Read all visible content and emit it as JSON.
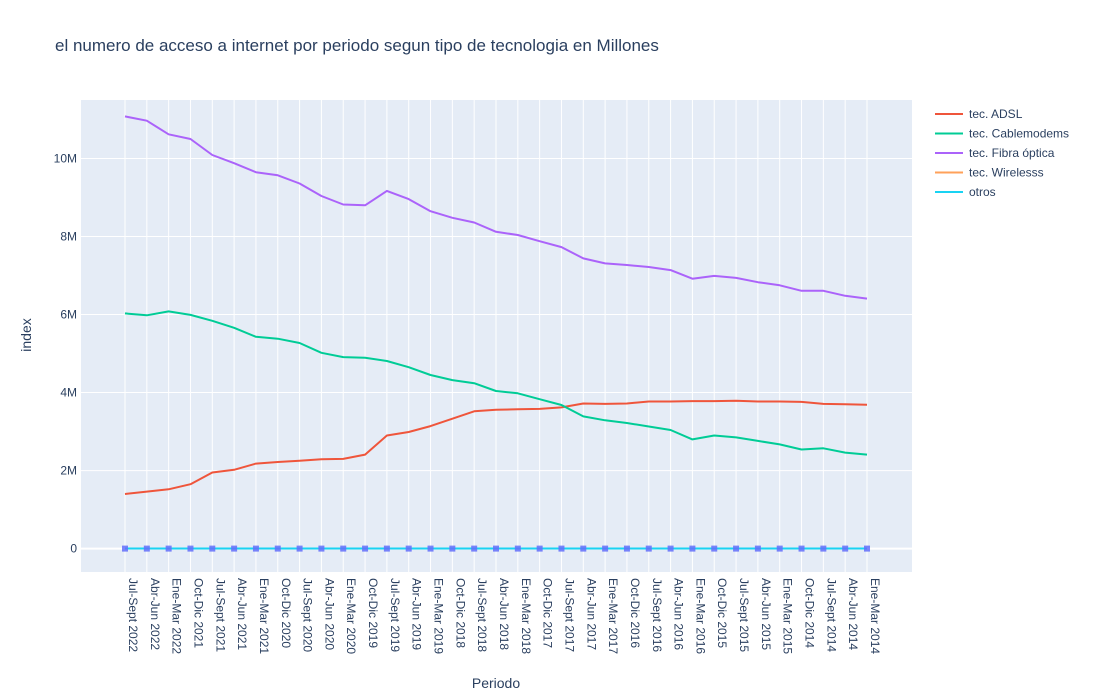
{
  "chart_data": {
    "type": "line",
    "title": "el numero de acceso a internet por periodo segun tipo de tecnologia en Millones",
    "xlabel": "Periodo",
    "ylabel": "index",
    "ylim": [
      -600000,
      11500000
    ],
    "yticks": [
      0,
      2000000,
      4000000,
      6000000,
      8000000,
      10000000
    ],
    "ytick_labels": [
      "0",
      "2M",
      "4M",
      "6M",
      "8M",
      "10M"
    ],
    "grid": true,
    "legend_position": "top-right",
    "background": "#e5ecf6",
    "categories": [
      "Jul-Sept 2022",
      "Abr-Jun 2022",
      "Ene-Mar 2022",
      "Oct-Dic 2021",
      "Jul-Sept 2021",
      "Abr-Jun 2021",
      "Ene-Mar 2021",
      "Oct-Dic 2020",
      "Jul-Sept 2020",
      "Abr-Jun 2020",
      "Ene-Mar 2020",
      "Oct-Dic 2019",
      "Jul-Sept 2019",
      "Abr-Jun 2019",
      "Ene-Mar 2019",
      "Oct-Dic 2018",
      "Jul-Sept 2018",
      "Abr-Jun 2018",
      "Ene-Mar 2018",
      "Oct-Dic 2017",
      "Jul-Sept 2017",
      "Abr-Jun 2017",
      "Ene-Mar 2017",
      "Oct-Dic 2016",
      "Jul-Sept 2016",
      "Abr-Jun 2016",
      "Ene-Mar 2016",
      "Oct-Dic 2015",
      "Jul-Sept 2015",
      "Abr-Jun 2015",
      "Ene-Mar 2015",
      "Oct-Dic 2014",
      "Jul-Sept 2014",
      "Abr-Jun 2014",
      "Ene-Mar 2014"
    ],
    "series": [
      {
        "name": "tec. ADSL",
        "color": "#ef553b",
        "values": [
          1400000,
          1460000,
          1520000,
          1650000,
          1950000,
          2020000,
          2180000,
          2220000,
          2250000,
          2290000,
          2300000,
          2410000,
          2900000,
          2990000,
          3140000,
          3330000,
          3520000,
          3560000,
          3570000,
          3580000,
          3620000,
          3720000,
          3710000,
          3720000,
          3770000,
          3770000,
          3780000,
          3780000,
          3790000,
          3770000,
          3770000,
          3760000,
          3710000,
          3700000,
          3690000
        ]
      },
      {
        "name": "tec. Cablemodems",
        "color": "#00cc96",
        "values": [
          6030000,
          5980000,
          6080000,
          5990000,
          5840000,
          5660000,
          5430000,
          5380000,
          5270000,
          5020000,
          4910000,
          4890000,
          4810000,
          4650000,
          4450000,
          4320000,
          4240000,
          4040000,
          3980000,
          3830000,
          3680000,
          3390000,
          3290000,
          3220000,
          3130000,
          3040000,
          2800000,
          2900000,
          2850000,
          2760000,
          2670000,
          2540000,
          2570000,
          2460000,
          2410000
        ]
      },
      {
        "name": "tec. Fibra óptica",
        "color": "#ab63fa",
        "values": [
          11080000,
          10970000,
          10620000,
          10500000,
          10090000,
          9880000,
          9650000,
          9570000,
          9360000,
          9040000,
          8820000,
          8800000,
          9170000,
          8960000,
          8650000,
          8480000,
          8360000,
          8120000,
          8040000,
          7880000,
          7730000,
          7440000,
          7310000,
          7270000,
          7220000,
          7140000,
          6920000,
          6990000,
          6940000,
          6830000,
          6750000,
          6610000,
          6610000,
          6480000,
          6410000
        ]
      },
      {
        "name": "tec. Wirelesss",
        "color": "#ffa15a",
        "values": [
          3000,
          3000,
          3000,
          3000,
          3000,
          3000,
          3000,
          3000,
          3000,
          3000,
          3000,
          3000,
          3000,
          3000,
          3000,
          3000,
          3000,
          3000,
          3000,
          3000,
          3000,
          3000,
          3000,
          3000,
          3000,
          3000,
          3000,
          3000,
          3000,
          3000,
          3000,
          3000,
          3000,
          3000,
          3000
        ]
      },
      {
        "name": "otros",
        "color": "#19d3f3",
        "values": [
          2000,
          2000,
          2000,
          2000,
          2000,
          2000,
          2000,
          2000,
          2000,
          2000,
          2000,
          2000,
          2000,
          2000,
          2000,
          2000,
          2000,
          2000,
          2000,
          2000,
          2000,
          2000,
          2000,
          2000,
          2000,
          2000,
          2000,
          2000,
          2000,
          2000,
          2000,
          2000,
          2000,
          2000,
          2000
        ]
      }
    ],
    "zero_line_marker_color": "#636efa"
  }
}
